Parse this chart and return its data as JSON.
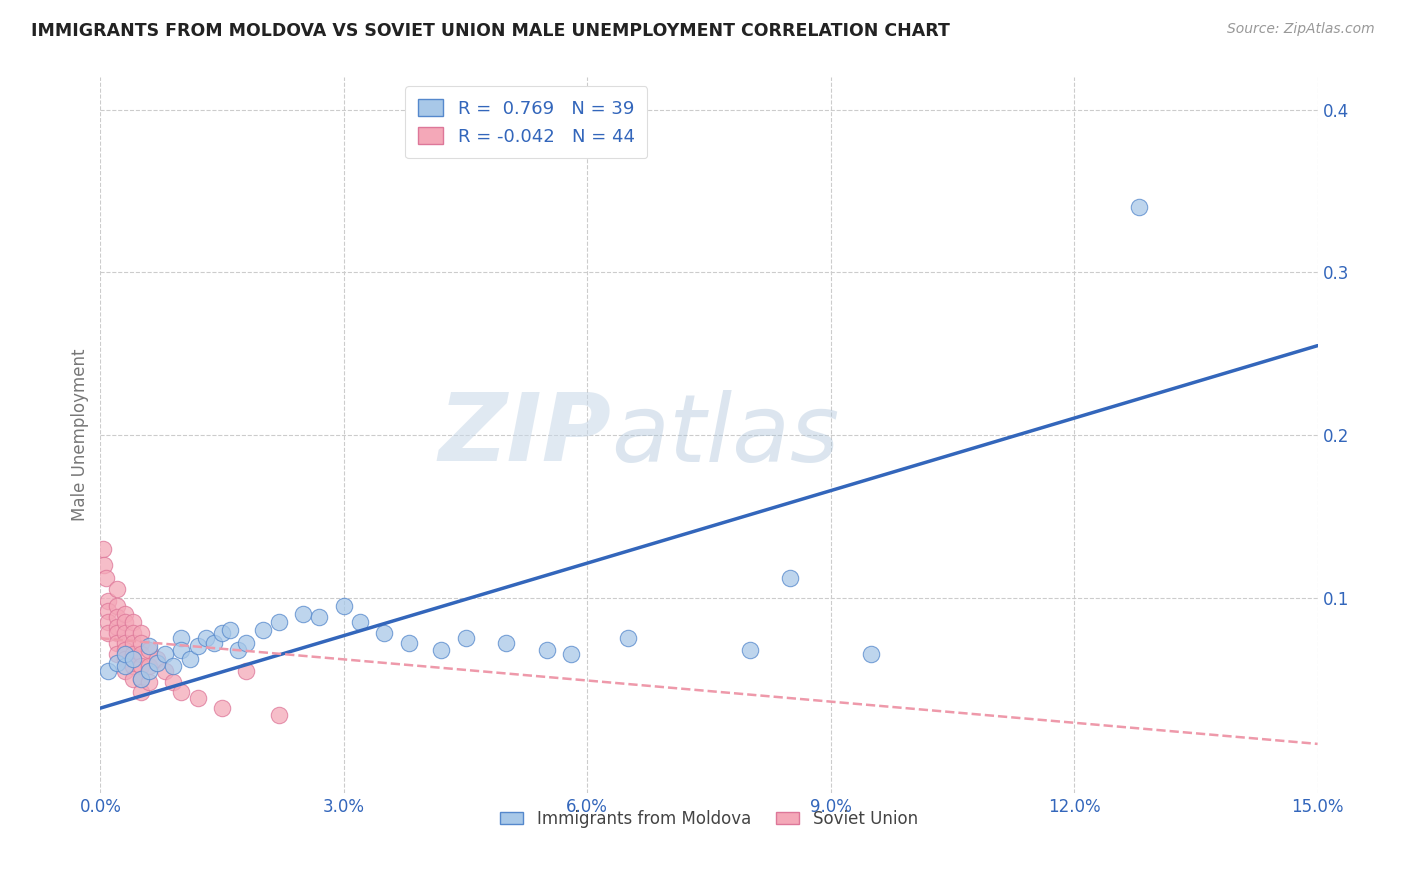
{
  "title": "IMMIGRANTS FROM MOLDOVA VS SOVIET UNION MALE UNEMPLOYMENT CORRELATION CHART",
  "source": "Source: ZipAtlas.com",
  "xlabel_blue": "Immigrants from Moldova",
  "xlabel_pink": "Soviet Union",
  "ylabel": "Male Unemployment",
  "xlim": [
    0.0,
    0.15
  ],
  "ylim": [
    -0.02,
    0.42
  ],
  "xticks": [
    0.0,
    0.03,
    0.06,
    0.09,
    0.12,
    0.15
  ],
  "yticks": [
    0.1,
    0.2,
    0.3,
    0.4
  ],
  "blue_R": 0.769,
  "blue_N": 39,
  "pink_R": -0.042,
  "pink_N": 44,
  "blue_color": "#a8c8e8",
  "pink_color": "#f4a8b8",
  "blue_edge_color": "#5588cc",
  "pink_edge_color": "#dd7799",
  "blue_line_color": "#3366bb",
  "pink_line_color": "#ee99aa",
  "watermark_zip": "ZIP",
  "watermark_atlas": "atlas",
  "blue_scatter": [
    [
      0.001,
      0.055
    ],
    [
      0.002,
      0.06
    ],
    [
      0.003,
      0.058
    ],
    [
      0.003,
      0.065
    ],
    [
      0.004,
      0.062
    ],
    [
      0.005,
      0.05
    ],
    [
      0.006,
      0.055
    ],
    [
      0.006,
      0.07
    ],
    [
      0.007,
      0.06
    ],
    [
      0.008,
      0.065
    ],
    [
      0.009,
      0.058
    ],
    [
      0.01,
      0.075
    ],
    [
      0.01,
      0.068
    ],
    [
      0.011,
      0.062
    ],
    [
      0.012,
      0.07
    ],
    [
      0.013,
      0.075
    ],
    [
      0.014,
      0.072
    ],
    [
      0.015,
      0.078
    ],
    [
      0.016,
      0.08
    ],
    [
      0.017,
      0.068
    ],
    [
      0.018,
      0.072
    ],
    [
      0.02,
      0.08
    ],
    [
      0.022,
      0.085
    ],
    [
      0.025,
      0.09
    ],
    [
      0.027,
      0.088
    ],
    [
      0.03,
      0.095
    ],
    [
      0.032,
      0.085
    ],
    [
      0.035,
      0.078
    ],
    [
      0.038,
      0.072
    ],
    [
      0.042,
      0.068
    ],
    [
      0.045,
      0.075
    ],
    [
      0.05,
      0.072
    ],
    [
      0.055,
      0.068
    ],
    [
      0.058,
      0.065
    ],
    [
      0.065,
      0.075
    ],
    [
      0.08,
      0.068
    ],
    [
      0.085,
      0.112
    ],
    [
      0.095,
      0.065
    ],
    [
      0.128,
      0.34
    ]
  ],
  "pink_scatter": [
    [
      0.0003,
      0.13
    ],
    [
      0.0005,
      0.12
    ],
    [
      0.0007,
      0.112
    ],
    [
      0.001,
      0.098
    ],
    [
      0.001,
      0.092
    ],
    [
      0.001,
      0.085
    ],
    [
      0.001,
      0.078
    ],
    [
      0.002,
      0.105
    ],
    [
      0.002,
      0.095
    ],
    [
      0.002,
      0.088
    ],
    [
      0.002,
      0.082
    ],
    [
      0.002,
      0.078
    ],
    [
      0.002,
      0.072
    ],
    [
      0.002,
      0.065
    ],
    [
      0.003,
      0.09
    ],
    [
      0.003,
      0.085
    ],
    [
      0.003,
      0.078
    ],
    [
      0.003,
      0.072
    ],
    [
      0.003,
      0.068
    ],
    [
      0.003,
      0.062
    ],
    [
      0.003,
      0.055
    ],
    [
      0.004,
      0.085
    ],
    [
      0.004,
      0.078
    ],
    [
      0.004,
      0.072
    ],
    [
      0.004,
      0.065
    ],
    [
      0.004,
      0.058
    ],
    [
      0.004,
      0.05
    ],
    [
      0.005,
      0.078
    ],
    [
      0.005,
      0.072
    ],
    [
      0.005,
      0.065
    ],
    [
      0.005,
      0.058
    ],
    [
      0.005,
      0.05
    ],
    [
      0.005,
      0.042
    ],
    [
      0.006,
      0.068
    ],
    [
      0.006,
      0.058
    ],
    [
      0.006,
      0.048
    ],
    [
      0.007,
      0.062
    ],
    [
      0.008,
      0.055
    ],
    [
      0.009,
      0.048
    ],
    [
      0.01,
      0.042
    ],
    [
      0.012,
      0.038
    ],
    [
      0.015,
      0.032
    ],
    [
      0.018,
      0.055
    ],
    [
      0.022,
      0.028
    ]
  ],
  "blue_line_x0": 0.0,
  "blue_line_y0": 0.032,
  "blue_line_x1": 0.15,
  "blue_line_y1": 0.255,
  "pink_line_x0": 0.0,
  "pink_line_y0": 0.075,
  "pink_line_x1": 0.15,
  "pink_line_y1": 0.01
}
